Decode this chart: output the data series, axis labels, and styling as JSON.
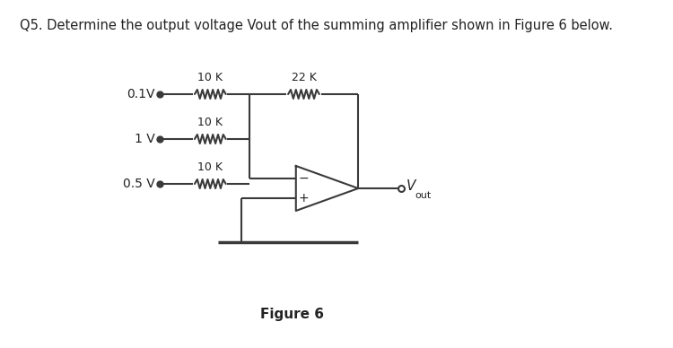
{
  "title": "Q5. Determine the output voltage Vout of the summing amplifier shown in Figure 6 below.",
  "figure_label": "Figure 6",
  "background_color": "#ffffff",
  "line_color": "#3a3a3a",
  "text_color": "#222222",
  "title_fontsize": 10.5,
  "label_fontsize": 10,
  "small_fontsize": 9,
  "fig_label_fontsize": 11,
  "voltages": [
    "0.1V",
    "1 V",
    "0.5 V"
  ],
  "resistors_in": [
    "10 K",
    "10 K",
    "10 K"
  ],
  "resistor_fb": "22 K",
  "vout_label": "V",
  "vout_sub": "out",
  "minus_label": "−",
  "plus_label": "+"
}
